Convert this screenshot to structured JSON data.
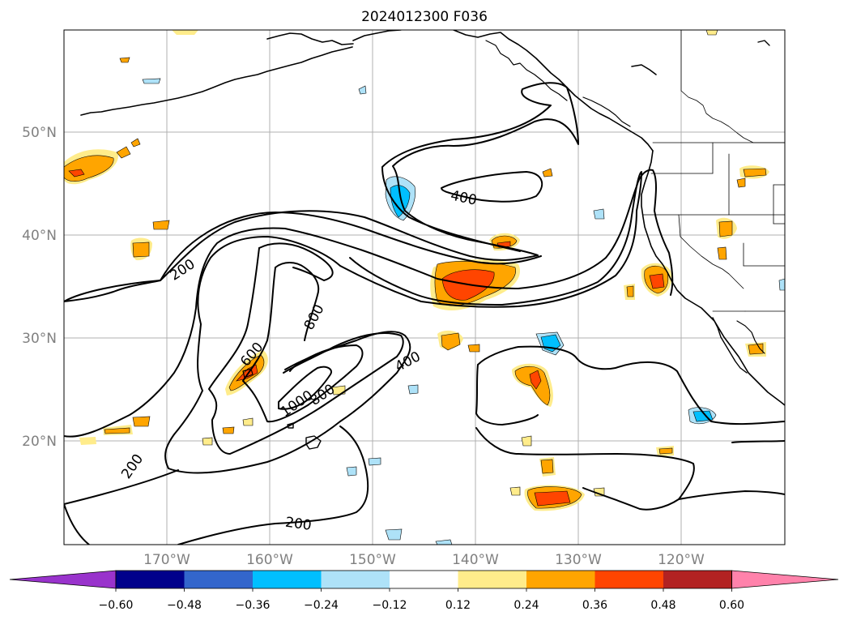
{
  "title": "2024012300 F036",
  "map": {
    "lon_range": [
      -180,
      -110
    ],
    "lat_range": [
      10,
      60
    ],
    "longitude_ticks": [
      "170°W",
      "160°W",
      "150°W",
      "140°W",
      "130°W",
      "120°W"
    ],
    "latitude_ticks": [
      "50°N",
      "40°N",
      "30°N",
      "20°N"
    ],
    "gridlines": true,
    "contour_labels": [
      "200",
      "200",
      "200",
      "400",
      "400",
      "600",
      "800",
      "800",
      "1000"
    ]
  },
  "colorbar": {
    "tick_labels": [
      "−0.60",
      "−0.48",
      "−0.36",
      "−0.24",
      "−0.12",
      "0.12",
      "0.24",
      "0.36",
      "0.48",
      "0.60"
    ],
    "colors": [
      "#9933cc",
      "#00008b",
      "#3366cc",
      "#00bfff",
      "#aee2f8",
      "#ffffff",
      "#ffec8b",
      "#ffa500",
      "#ff4500",
      "#b22222",
      "#ff82ab"
    ],
    "extend": "both"
  },
  "fill_colors": {
    "yellow": "#ffec8b",
    "orange": "#ffa500",
    "red": "#ff4500",
    "light_blue": "#aee2f8",
    "blue": "#00bfff"
  }
}
